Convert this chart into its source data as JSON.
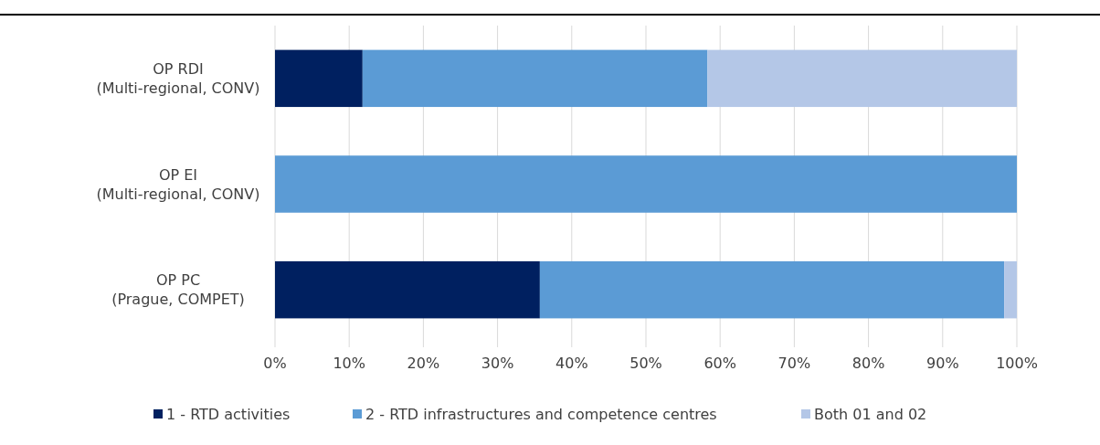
{
  "chart_data": {
    "type": "bar",
    "orientation": "horizontal",
    "stacked": true,
    "categories": [
      "OP RDI\n(Multi-regional, CONV)",
      "OP EI\n(Multi-regional, CONV)",
      "OP PC\n(Prague, COMPET)"
    ],
    "series": [
      {
        "name": "1 - RTD activities",
        "color": "#002060",
        "values": [
          11.8,
          0,
          35.7
        ]
      },
      {
        "name": "2 - RTD infrastructures and competence centres",
        "color": "#5b9bd5",
        "values": [
          46.5,
          100,
          62.6
        ]
      },
      {
        "name": "Both 01 and 02",
        "color": "#b4c7e7",
        "values": [
          41.7,
          0,
          1.7
        ]
      }
    ],
    "xlim": [
      0,
      100
    ],
    "xticks": [
      {
        "value": 0,
        "label": "0%"
      },
      {
        "value": 10,
        "label": "10%"
      },
      {
        "value": 20,
        "label": "20%"
      },
      {
        "value": 30,
        "label": "30%"
      },
      {
        "value": 40,
        "label": "40%"
      },
      {
        "value": 50,
        "label": "50%"
      },
      {
        "value": 60,
        "label": "60%"
      },
      {
        "value": 70,
        "label": "70%"
      },
      {
        "value": 80,
        "label": "80%"
      },
      {
        "value": 90,
        "label": "90%"
      },
      {
        "value": 100,
        "label": "100%"
      }
    ],
    "grid": "x",
    "legend": "bottom"
  }
}
